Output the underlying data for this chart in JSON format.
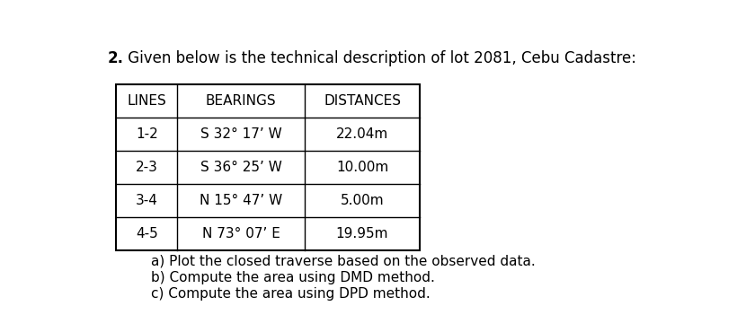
{
  "title_bold": "2.",
  "title_rest": " Given below is the technical description of lot 2081, Cebu Cadastre:",
  "table_headers": [
    "LINES",
    "BEARINGS",
    "DISTANCES"
  ],
  "table_rows": [
    [
      "1-2",
      "S 32° 17’ W",
      "22.04m"
    ],
    [
      "2-3",
      "S 36° 25’ W",
      "10.00m"
    ],
    [
      "3-4",
      "N 15° 47’ W",
      "5.00m"
    ],
    [
      "4-5",
      "N 73° 07’ E",
      "19.95m"
    ]
  ],
  "questions": [
    "a) Plot the closed traverse based on the observed data.",
    "b) Compute the area using DMD method.",
    "c) Compute the area using DPD method."
  ],
  "bg_color": "#ffffff",
  "title_fontsize": 12,
  "header_fontsize": 11,
  "cell_fontsize": 11,
  "question_fontsize": 11
}
